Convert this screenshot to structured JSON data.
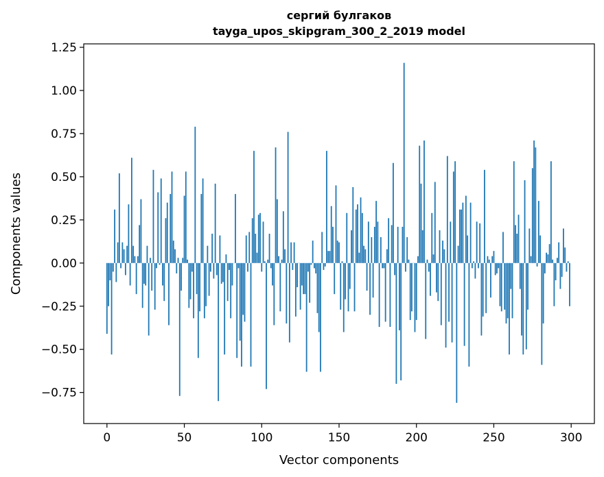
{
  "chart_data": {
    "type": "bar",
    "title": [
      "сергий булгаков",
      "tayga_upos_skipgram_300_2_2019 model"
    ],
    "xlabel": "Vector components",
    "ylabel": "Components values",
    "xlim": [
      -15,
      315
    ],
    "ylim": [
      -0.93,
      1.27
    ],
    "xticks": [
      0,
      50,
      100,
      150,
      200,
      250,
      300
    ],
    "xtick_labels": [
      "0",
      "50",
      "100",
      "150",
      "200",
      "250",
      "300"
    ],
    "yticks": [
      -0.75,
      -0.5,
      -0.25,
      0,
      0.25,
      0.5,
      0.75,
      1.0,
      1.25
    ],
    "ytick_labels": [
      "−0.75",
      "−0.50",
      "−0.25",
      "0.00",
      "0.25",
      "0.50",
      "0.75",
      "1.00",
      "1.25"
    ],
    "grid": false,
    "bar_color": "#1f77b4",
    "values": [
      -0.41,
      -0.25,
      -0.1,
      -0.53,
      -0.05,
      0.31,
      -0.11,
      0.12,
      0.52,
      -0.03,
      0.12,
      0.08,
      -0.07,
      0.1,
      0.34,
      -0.13,
      0.61,
      0.1,
      0.04,
      -0.18,
      0.04,
      0.22,
      0.37,
      -0.26,
      -0.12,
      -0.13,
      0.1,
      -0.42,
      0.03,
      -0.16,
      0.54,
      -0.27,
      -0.03,
      0.41,
      -0.01,
      0.49,
      -0.13,
      -0.22,
      0.26,
      0.35,
      -0.36,
      0.4,
      0.53,
      0.13,
      0.08,
      -0.06,
      0.03,
      -0.77,
      -0.16,
      0.03,
      0.39,
      0.53,
      0.02,
      -0.26,
      -0.21,
      -0.05,
      -0.32,
      0.79,
      -0.18,
      -0.55,
      -0.28,
      0.4,
      0.49,
      -0.32,
      -0.25,
      0.1,
      -0.19,
      -0.05,
      0.17,
      -0.09,
      0.46,
      -0.07,
      -0.8,
      0.16,
      -0.12,
      -0.11,
      -0.53,
      0.05,
      -0.22,
      -0.04,
      -0.32,
      -0.13,
      0.0,
      0.4,
      -0.55,
      -0.03,
      -0.45,
      -0.6,
      -0.3,
      -0.34,
      0.16,
      -0.05,
      0.18,
      -0.6,
      0.26,
      0.65,
      0.17,
      0.06,
      0.28,
      0.29,
      -0.05,
      0.24,
      0.01,
      -0.73,
      0.02,
      0.17,
      -0.03,
      -0.13,
      -0.36,
      0.67,
      0.37,
      0.04,
      -0.28,
      0.02,
      0.3,
      0.08,
      -0.35,
      0.76,
      -0.46,
      0.12,
      -0.04,
      0.12,
      -0.31,
      -0.14,
      0.0,
      -0.27,
      -0.13,
      -0.18,
      -0.18,
      -0.63,
      -0.05,
      -0.23,
      -0.01,
      0.13,
      -0.03,
      -0.06,
      -0.29,
      -0.4,
      -0.63,
      0.18,
      -0.04,
      -0.02,
      0.65,
      0.07,
      0.07,
      0.33,
      0.21,
      -0.18,
      0.45,
      0.13,
      0.12,
      -0.27,
      0.01,
      -0.4,
      -0.21,
      0.29,
      -0.28,
      -0.15,
      0.19,
      0.44,
      -0.28,
      0.31,
      0.34,
      0.06,
      0.38,
      0.29,
      0.1,
      0.08,
      -0.16,
      0.24,
      -0.3,
      0.15,
      -0.2,
      0.21,
      0.36,
      0.24,
      -0.37,
      0.15,
      -0.03,
      -0.03,
      -0.34,
      0.08,
      0.26,
      -0.37,
      0.22,
      0.58,
      -0.07,
      -0.7,
      0.21,
      -0.39,
      -0.68,
      0.21,
      1.16,
      -0.05,
      0.15,
      0.02,
      -0.33,
      -0.28,
      0.0,
      -0.4,
      -0.33,
      0.04,
      0.68,
      0.46,
      0.19,
      0.71,
      -0.44,
      0.02,
      -0.05,
      -0.19,
      0.29,
      0.05,
      0.47,
      -0.17,
      -0.22,
      0.19,
      -0.36,
      0.13,
      0.08,
      -0.49,
      0.62,
      -0.34,
      0.24,
      -0.46,
      0.53,
      0.59,
      -0.81,
      0.1,
      0.31,
      0.31,
      0.35,
      -0.48,
      0.39,
      0.16,
      -0.6,
      0.35,
      -0.03,
      0.01,
      -0.09,
      0.24,
      -0.03,
      0.23,
      -0.42,
      -0.31,
      0.54,
      -0.29,
      0.04,
      0.02,
      -0.2,
      0.04,
      0.07,
      -0.07,
      -0.06,
      -0.03,
      -0.25,
      -0.28,
      0.18,
      -0.27,
      -0.35,
      -0.32,
      -0.53,
      -0.15,
      -0.32,
      0.59,
      0.22,
      0.17,
      0.28,
      -0.15,
      -0.42,
      -0.53,
      0.48,
      -0.5,
      -0.27,
      0.2,
      0.04,
      0.55,
      0.71,
      0.67,
      -0.02,
      0.36,
      0.16,
      -0.59,
      -0.35,
      -0.06,
      0.06,
      0.05,
      0.11,
      0.59,
      0.02,
      -0.25,
      -0.1,
      0.03,
      0.12,
      -0.15,
      -0.08,
      0.2,
      0.09,
      -0.05,
      0.01,
      -0.25
    ]
  }
}
